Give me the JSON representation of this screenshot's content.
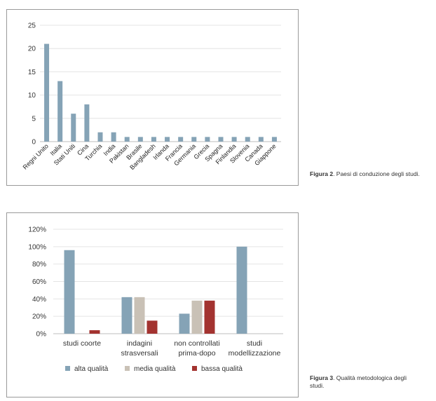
{
  "figures": [
    {
      "caption_label": "Figura 2",
      "caption_text": ". Paesi di conduzione degli studi."
    },
    {
      "caption_label": "Figura 3",
      "caption_text": ". Qualità metodologica degli studi."
    }
  ],
  "colors": {
    "bar_blue": "#85a3b6",
    "bar_gray": "#c9c1b6",
    "bar_red": "#a33330",
    "grid": "#e4e4e4",
    "axis": "#bdbdbd"
  },
  "chart_data": [
    {
      "type": "bar",
      "title": "",
      "xlabel": "",
      "ylabel": "",
      "categories": [
        "Regni Unito",
        "Italia",
        "Stati Uniti",
        "Cina",
        "Turchia",
        "India",
        "Pakistan",
        "Brasile",
        "Bangladesh",
        "Irlanda",
        "Francia",
        "Germania",
        "Grecia",
        "Spagna",
        "Finlandia",
        "Slovenia",
        "Canada",
        "Giappone"
      ],
      "values": [
        21,
        13,
        6,
        8,
        2,
        2,
        1,
        1,
        1,
        1,
        1,
        1,
        1,
        1,
        1,
        1,
        1,
        1
      ],
      "ylim": [
        0,
        25
      ],
      "yticks": [
        0,
        5,
        10,
        15,
        20,
        25
      ],
      "ytick_labels": [
        "0",
        "5",
        "10",
        "15",
        "20",
        "25"
      ],
      "grid": true,
      "legend": "none"
    },
    {
      "type": "bar",
      "title": "",
      "xlabel": "",
      "ylabel": "",
      "categories": [
        [
          "studi coorte"
        ],
        [
          "indagini",
          "strasversali"
        ],
        [
          "non controllati",
          "prima-dopo"
        ],
        [
          "studi",
          "modellizzazione"
        ]
      ],
      "series": [
        {
          "name": "alta qualità",
          "values": [
            96,
            42,
            23,
            100
          ]
        },
        {
          "name": "media qualità",
          "values": [
            0,
            42,
            38,
            0
          ]
        },
        {
          "name": "bassa qualità",
          "values": [
            4,
            15,
            38,
            0
          ]
        }
      ],
      "ylim": [
        0,
        120
      ],
      "yticks": [
        0,
        20,
        40,
        60,
        80,
        100,
        120
      ],
      "ytick_labels": [
        "0%",
        "20%",
        "40%",
        "60%",
        "80%",
        "100%",
        "120%"
      ],
      "grid": true,
      "legend": "bottom"
    }
  ]
}
